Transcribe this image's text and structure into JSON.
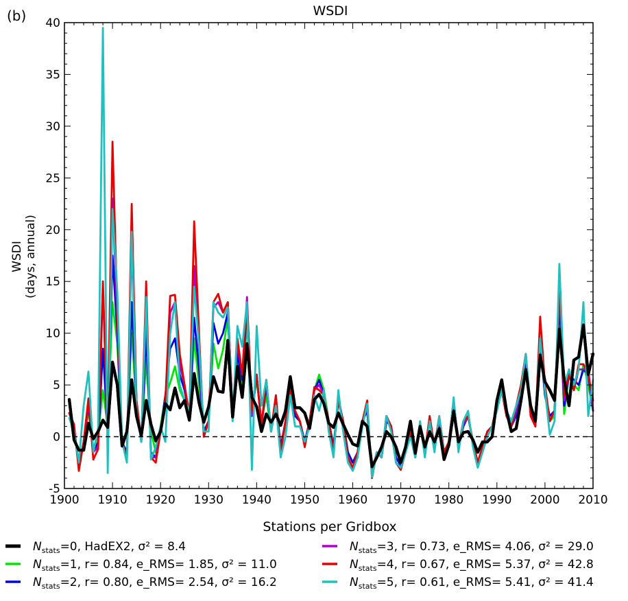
{
  "chart_data": {
    "type": "line",
    "panel_label": "(b)",
    "title": "WSDI",
    "xlabel": "Stations per Gridbox",
    "ylabel": [
      "WSDI",
      "(days, annual)"
    ],
    "xlim": [
      1900,
      2010
    ],
    "ylim": [
      -5,
      40
    ],
    "xticks": [
      1900,
      1910,
      1920,
      1930,
      1940,
      1950,
      1960,
      1970,
      1980,
      1990,
      2000,
      2010
    ],
    "yticks": [
      -5,
      0,
      5,
      10,
      15,
      20,
      25,
      30,
      35,
      40
    ],
    "reference_line": {
      "y": 0,
      "style": "dashed"
    },
    "grid": false,
    "legend_position": "below",
    "x": [
      1901,
      1902,
      1903,
      1904,
      1905,
      1906,
      1907,
      1908,
      1909,
      1910,
      1911,
      1912,
      1913,
      1914,
      1915,
      1916,
      1917,
      1918,
      1919,
      1920,
      1921,
      1922,
      1923,
      1924,
      1925,
      1926,
      1927,
      1928,
      1929,
      1930,
      1931,
      1932,
      1933,
      1934,
      1935,
      1936,
      1937,
      1938,
      1939,
      1940,
      1941,
      1942,
      1943,
      1944,
      1945,
      1946,
      1947,
      1948,
      1949,
      1950,
      1951,
      1952,
      1953,
      1954,
      1955,
      1956,
      1957,
      1958,
      1959,
      1960,
      1961,
      1962,
      1963,
      1964,
      1965,
      1966,
      1967,
      1968,
      1969,
      1970,
      1971,
      1972,
      1973,
      1974,
      1975,
      1976,
      1977,
      1978,
      1979,
      1980,
      1981,
      1982,
      1983,
      1984,
      1985,
      1986,
      1987,
      1988,
      1989,
      1990,
      1991,
      1992,
      1993,
      1994,
      1995,
      1996,
      1997,
      1998,
      1999,
      2000,
      2001,
      2002,
      2003,
      2004,
      2005,
      2006,
      2007,
      2008,
      2009,
      2010
    ],
    "series": [
      {
        "name": "HadEX2",
        "legend_text": "=0, HadEX2, σ² =  8.4",
        "color": "#000000",
        "width": 4.2,
        "values": [
          3.6,
          -0.3,
          -1.3,
          -1.3,
          1.3,
          -0.2,
          0.5,
          1.6,
          0.9,
          7.2,
          5.0,
          -0.9,
          0.5,
          5.5,
          2.0,
          0.1,
          3.5,
          1.2,
          -0.4,
          0.5,
          3.2,
          2.6,
          4.7,
          2.8,
          3.5,
          1.6,
          6.1,
          3.3,
          1.4,
          2.9,
          5.8,
          4.4,
          4.3,
          9.3,
          1.9,
          6.8,
          3.8,
          9.0,
          3.8,
          2.9,
          0.5,
          2.2,
          1.4,
          2.2,
          1.1,
          2.5,
          5.8,
          2.8,
          2.8,
          2.3,
          0.8,
          3.6,
          4.1,
          3.2,
          1.3,
          0.9,
          2.3,
          1.2,
          0.2,
          -0.7,
          -0.9,
          1.5,
          1.0,
          -2.9,
          -2.0,
          -1.0,
          0.5,
          0.0,
          -1.0,
          -2.5,
          -1.0,
          1.5,
          -1.6,
          1.0,
          -1.0,
          0.5,
          -0.5,
          0.8,
          -2.2,
          -0.8,
          2.5,
          -0.5,
          0.4,
          0.5,
          -0.3,
          -1.5,
          -0.5,
          -0.5,
          0.0,
          3.5,
          5.5,
          2.5,
          0.5,
          0.8,
          3.5,
          6.5,
          3.0,
          1.5,
          7.9,
          5.3,
          4.5,
          3.5,
          10.4,
          5.5,
          3.0,
          7.4,
          7.7,
          10.8,
          6.0,
          8.0
        ]
      },
      {
        "name": "",
        "legend_text": "=1, r= 0.84, e_RMS= 1.85, σ² = 11.0",
        "color": "#00e600",
        "width": 2.8,
        "values": [
          2.3,
          0.8,
          -2.8,
          -0.5,
          2.5,
          -1.2,
          0.2,
          4.5,
          1.0,
          13.0,
          9.0,
          -0.7,
          0.3,
          10.0,
          3.0,
          -0.2,
          7.5,
          0.5,
          -1.5,
          1.0,
          4.0,
          5.2,
          6.8,
          4.5,
          3.5,
          1.8,
          9.5,
          5.0,
          0.5,
          1.5,
          9.0,
          6.6,
          8.4,
          11.5,
          2.3,
          7.5,
          5.0,
          11.0,
          2.5,
          5.5,
          1.5,
          4.0,
          0.5,
          3.0,
          -0.8,
          1.0,
          4.5,
          2.0,
          1.5,
          -0.5,
          1.0,
          4.5,
          6.0,
          4.5,
          1.5,
          -0.8,
          3.5,
          1.5,
          -1.5,
          -2.5,
          -1.5,
          1.5,
          2.5,
          -3.5,
          -1.5,
          -2.0,
          1.5,
          1.0,
          -2.0,
          -2.8,
          -1.5,
          0.5,
          -1.8,
          1.0,
          -1.5,
          1.5,
          -1.0,
          1.5,
          -1.5,
          -0.5,
          3.5,
          -1.0,
          1.0,
          2.0,
          -0.5,
          -2.5,
          -1.0,
          0.5,
          1.0,
          3.0,
          4.5,
          2.0,
          1.0,
          2.0,
          4.0,
          7.5,
          3.0,
          1.5,
          9.0,
          4.0,
          1.5,
          2.0,
          13.0,
          2.2,
          6.0,
          5.0,
          4.5,
          7.0,
          5.0,
          2.5
        ]
      },
      {
        "name": "",
        "legend_text": "=2, r= 0.80, e_RMS= 2.54, σ² = 16.2",
        "color": "#0000e6",
        "width": 2.8,
        "values": [
          2.3,
          1.0,
          -3.0,
          -0.5,
          3.0,
          -1.5,
          -0.5,
          8.5,
          0.5,
          17.5,
          10.0,
          -0.5,
          -1.5,
          13.0,
          3.0,
          -0.5,
          10.0,
          -1.5,
          -2.0,
          0.5,
          4.0,
          8.5,
          9.5,
          6.0,
          4.5,
          2.0,
          11.5,
          6.5,
          0.5,
          1.5,
          11.0,
          9.0,
          10.0,
          12.0,
          2.0,
          8.0,
          5.5,
          12.5,
          2.0,
          6.0,
          1.0,
          5.0,
          0.5,
          3.5,
          -1.0,
          1.5,
          5.0,
          2.0,
          1.5,
          -0.5,
          1.5,
          4.5,
          5.5,
          4.0,
          1.5,
          -1.0,
          3.5,
          1.5,
          -1.5,
          -2.5,
          -1.5,
          1.5,
          2.5,
          -3.5,
          -1.5,
          -2.0,
          1.5,
          1.0,
          -2.0,
          -2.8,
          -1.5,
          0.5,
          -1.8,
          1.0,
          -1.5,
          1.5,
          -1.0,
          1.5,
          -1.5,
          -0.5,
          3.5,
          -1.0,
          1.0,
          2.0,
          -0.5,
          -2.5,
          -1.0,
          0.5,
          1.0,
          3.0,
          4.5,
          2.0,
          1.0,
          2.0,
          4.0,
          7.5,
          2.5,
          1.0,
          9.0,
          4.0,
          2.0,
          2.5,
          13.0,
          3.0,
          6.0,
          5.5,
          5.0,
          6.5,
          6.0,
          2.5
        ]
      },
      {
        "name": "",
        "legend_text": "=3, r= 0.73, e_RMS= 4.06, σ² = 29.0",
        "color": "#b000d0",
        "width": 2.8,
        "values": [
          2.3,
          1.0,
          -3.0,
          -0.5,
          3.2,
          -1.5,
          -1.0,
          14.5,
          0.0,
          23.0,
          11.0,
          -0.5,
          -2.0,
          19.0,
          3.5,
          -0.5,
          12.5,
          -2.0,
          -2.0,
          0.5,
          3.5,
          12.0,
          13.0,
          7.0,
          5.0,
          2.0,
          16.5,
          8.5,
          0.0,
          1.5,
          12.5,
          13.0,
          12.0,
          13.0,
          2.0,
          9.0,
          6.0,
          13.5,
          2.0,
          6.0,
          1.0,
          5.5,
          0.5,
          4.0,
          -1.5,
          1.5,
          4.5,
          2.5,
          1.5,
          -0.8,
          1.5,
          4.5,
          5.0,
          4.0,
          1.5,
          -1.5,
          3.8,
          1.5,
          -2.0,
          -3.0,
          -1.5,
          1.5,
          3.0,
          -3.8,
          -1.5,
          -2.0,
          2.0,
          1.0,
          -2.5,
          -3.0,
          -1.5,
          0.5,
          -2.0,
          1.0,
          -1.5,
          1.8,
          -1.0,
          1.8,
          -1.5,
          -0.5,
          3.5,
          -1.0,
          1.2,
          2.0,
          -0.5,
          -2.5,
          -1.0,
          0.5,
          1.0,
          3.0,
          4.5,
          2.0,
          1.0,
          2.5,
          4.5,
          8.0,
          2.5,
          1.0,
          9.5,
          4.5,
          1.5,
          2.5,
          14.0,
          3.5,
          6.5,
          4.5,
          6.5,
          6.5,
          6.5,
          2.5
        ]
      },
      {
        "name": "",
        "legend_text": "=4, r= 0.67, e_RMS= 5.37, σ² = 42.8",
        "color": "#e60000",
        "width": 2.8,
        "values": [
          2.3,
          1.2,
          -3.3,
          -0.5,
          3.7,
          -2.2,
          -1.2,
          15.0,
          0.0,
          28.5,
          12.0,
          -0.5,
          -2.0,
          22.5,
          3.5,
          -0.5,
          15.0,
          -2.0,
          -2.5,
          0.5,
          3.5,
          13.6,
          13.7,
          8.0,
          5.0,
          2.0,
          20.8,
          10.0,
          0.0,
          1.5,
          13.0,
          13.8,
          12.0,
          13.0,
          2.0,
          9.5,
          6.0,
          13.0,
          2.5,
          6.0,
          1.0,
          5.5,
          0.5,
          4.0,
          -1.5,
          1.5,
          4.5,
          2.5,
          1.5,
          -1.0,
          1.5,
          4.8,
          4.5,
          4.0,
          1.5,
          -1.5,
          3.5,
          1.5,
          -2.0,
          -3.0,
          -1.5,
          1.5,
          3.5,
          -4.0,
          -1.5,
          -2.0,
          2.0,
          1.0,
          -2.5,
          -3.2,
          -1.5,
          0.5,
          -2.0,
          1.0,
          -1.5,
          2.0,
          -1.0,
          2.0,
          -1.5,
          -0.5,
          3.5,
          -1.0,
          1.5,
          2.0,
          -0.5,
          -2.5,
          -1.0,
          0.5,
          1.0,
          3.0,
          4.5,
          2.0,
          1.0,
          3.0,
          5.0,
          8.0,
          2.0,
          1.0,
          11.6,
          5.0,
          1.5,
          2.5,
          14.5,
          4.0,
          6.0,
          4.5,
          7.0,
          7.0,
          6.0,
          3.5
        ]
      },
      {
        "name": "",
        "legend_text": "=5, r= 0.61, e_RMS= 5.41, σ² = 41.4",
        "color": "#20c0c0",
        "width": 2.8,
        "values": [
          1.8,
          0.5,
          -2.5,
          3.0,
          6.3,
          -1.5,
          0.8,
          39.5,
          -3.5,
          22.0,
          14.0,
          -0.5,
          -2.5,
          19.8,
          2.5,
          -0.5,
          13.5,
          -2.2,
          -1.0,
          1.0,
          -0.5,
          10.0,
          13.0,
          5.0,
          3.5,
          2.5,
          14.5,
          9.0,
          0.5,
          0.5,
          13.0,
          12.0,
          11.5,
          12.5,
          1.5,
          10.7,
          8.7,
          13.0,
          -3.2,
          10.7,
          3.0,
          5.5,
          0.5,
          3.0,
          -2.0,
          0.0,
          4.0,
          1.0,
          1.0,
          -0.5,
          1.0,
          4.0,
          2.5,
          4.5,
          0.5,
          -2.0,
          4.5,
          0.5,
          -2.5,
          -3.3,
          -2.0,
          1.0,
          3.2,
          -3.9,
          -1.5,
          -2.0,
          2.0,
          0.5,
          -2.5,
          -3.0,
          -1.5,
          0.0,
          -2.0,
          1.5,
          -2.0,
          1.5,
          -1.5,
          2.0,
          -2.0,
          -1.0,
          3.8,
          -1.5,
          1.5,
          2.5,
          -1.0,
          -3.0,
          -1.5,
          0.0,
          1.0,
          2.5,
          4.5,
          2.5,
          1.5,
          3.0,
          4.5,
          8.0,
          3.0,
          1.5,
          9.5,
          4.5,
          0.2,
          1.5,
          16.7,
          5.0,
          6.5,
          5.0,
          6.5,
          13.0,
          2.0,
          5.5
        ]
      }
    ]
  },
  "legend": {
    "n_label": "N",
    "n_sub": "stats"
  }
}
